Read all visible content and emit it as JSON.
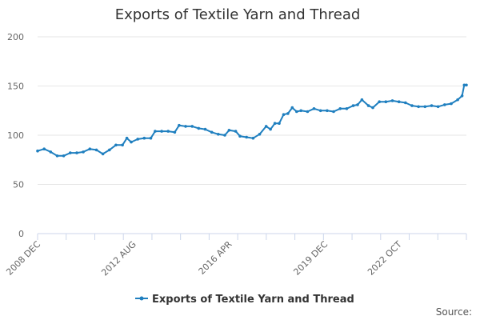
{
  "chart_data": {
    "type": "line",
    "title": "Exports of Textile Yarn and Thread",
    "xlabel": "",
    "ylabel": "",
    "ylim": [
      0,
      200
    ],
    "yticks": [
      0,
      50,
      100,
      150,
      200
    ],
    "x_tick_labels": [
      "2008 DEC",
      "2012 AUG",
      "2016 APR",
      "2019 DEC",
      "2022 OCT"
    ],
    "legend_position": "bottom-center",
    "grid": true,
    "source_label": "Source:",
    "series": [
      {
        "name": "Exports of Textile Yarn and Thread",
        "color": "#1f7fbf",
        "points": [
          {
            "x": "2008-12",
            "y": 84
          },
          {
            "x": "2009-03",
            "y": 86
          },
          {
            "x": "2009-06",
            "y": 83
          },
          {
            "x": "2009-09",
            "y": 79
          },
          {
            "x": "2009-12",
            "y": 79
          },
          {
            "x": "2010-03",
            "y": 82
          },
          {
            "x": "2010-06",
            "y": 82
          },
          {
            "x": "2010-09",
            "y": 83
          },
          {
            "x": "2010-12",
            "y": 86
          },
          {
            "x": "2011-03",
            "y": 85
          },
          {
            "x": "2011-06",
            "y": 81
          },
          {
            "x": "2011-09",
            "y": 85
          },
          {
            "x": "2011-12",
            "y": 90
          },
          {
            "x": "2012-03",
            "y": 90
          },
          {
            "x": "2012-05",
            "y": 97
          },
          {
            "x": "2012-07",
            "y": 93
          },
          {
            "x": "2012-10",
            "y": 96
          },
          {
            "x": "2013-01",
            "y": 97
          },
          {
            "x": "2013-04",
            "y": 97
          },
          {
            "x": "2013-06",
            "y": 104
          },
          {
            "x": "2013-09",
            "y": 104
          },
          {
            "x": "2013-12",
            "y": 104
          },
          {
            "x": "2014-03",
            "y": 103
          },
          {
            "x": "2014-05",
            "y": 110
          },
          {
            "x": "2014-08",
            "y": 109
          },
          {
            "x": "2014-11",
            "y": 109
          },
          {
            "x": "2015-02",
            "y": 107
          },
          {
            "x": "2015-05",
            "y": 106
          },
          {
            "x": "2015-08",
            "y": 103
          },
          {
            "x": "2015-11",
            "y": 101
          },
          {
            "x": "2016-02",
            "y": 100
          },
          {
            "x": "2016-04",
            "y": 105
          },
          {
            "x": "2016-07",
            "y": 104
          },
          {
            "x": "2016-09",
            "y": 99
          },
          {
            "x": "2016-12",
            "y": 98
          },
          {
            "x": "2017-03",
            "y": 97
          },
          {
            "x": "2017-06",
            "y": 101
          },
          {
            "x": "2017-09",
            "y": 109
          },
          {
            "x": "2017-11",
            "y": 106
          },
          {
            "x": "2018-01",
            "y": 112
          },
          {
            "x": "2018-03",
            "y": 112
          },
          {
            "x": "2018-05",
            "y": 121
          },
          {
            "x": "2018-07",
            "y": 122
          },
          {
            "x": "2018-09",
            "y": 128
          },
          {
            "x": "2018-11",
            "y": 124
          },
          {
            "x": "2019-01",
            "y": 125
          },
          {
            "x": "2019-04",
            "y": 124
          },
          {
            "x": "2019-07",
            "y": 127
          },
          {
            "x": "2019-10",
            "y": 125
          },
          {
            "x": "2020-01",
            "y": 125
          },
          {
            "x": "2020-04",
            "y": 124
          },
          {
            "x": "2020-07",
            "y": 127
          },
          {
            "x": "2020-10",
            "y": 127
          },
          {
            "x": "2021-01",
            "y": 130
          },
          {
            "x": "2021-03",
            "y": 131
          },
          {
            "x": "2021-05",
            "y": 136
          },
          {
            "x": "2021-08",
            "y": 130
          },
          {
            "x": "2021-10",
            "y": 128
          },
          {
            "x": "2022-01",
            "y": 134
          },
          {
            "x": "2022-04",
            "y": 134
          },
          {
            "x": "2022-07",
            "y": 135
          },
          {
            "x": "2022-10",
            "y": 134
          },
          {
            "x": "2023-01",
            "y": 133
          },
          {
            "x": "2023-04",
            "y": 130
          },
          {
            "x": "2023-07",
            "y": 129
          },
          {
            "x": "2023-10",
            "y": 129
          },
          {
            "x": "2024-01",
            "y": 130
          },
          {
            "x": "2024-04",
            "y": 129
          },
          {
            "x": "2024-07",
            "y": 131
          },
          {
            "x": "2024-10",
            "y": 132
          },
          {
            "x": "2025-01",
            "y": 136
          },
          {
            "x": "2025-03",
            "y": 140
          },
          {
            "x": "2025-04",
            "y": 151
          },
          {
            "x": "2025-05",
            "y": 151
          }
        ]
      }
    ]
  }
}
